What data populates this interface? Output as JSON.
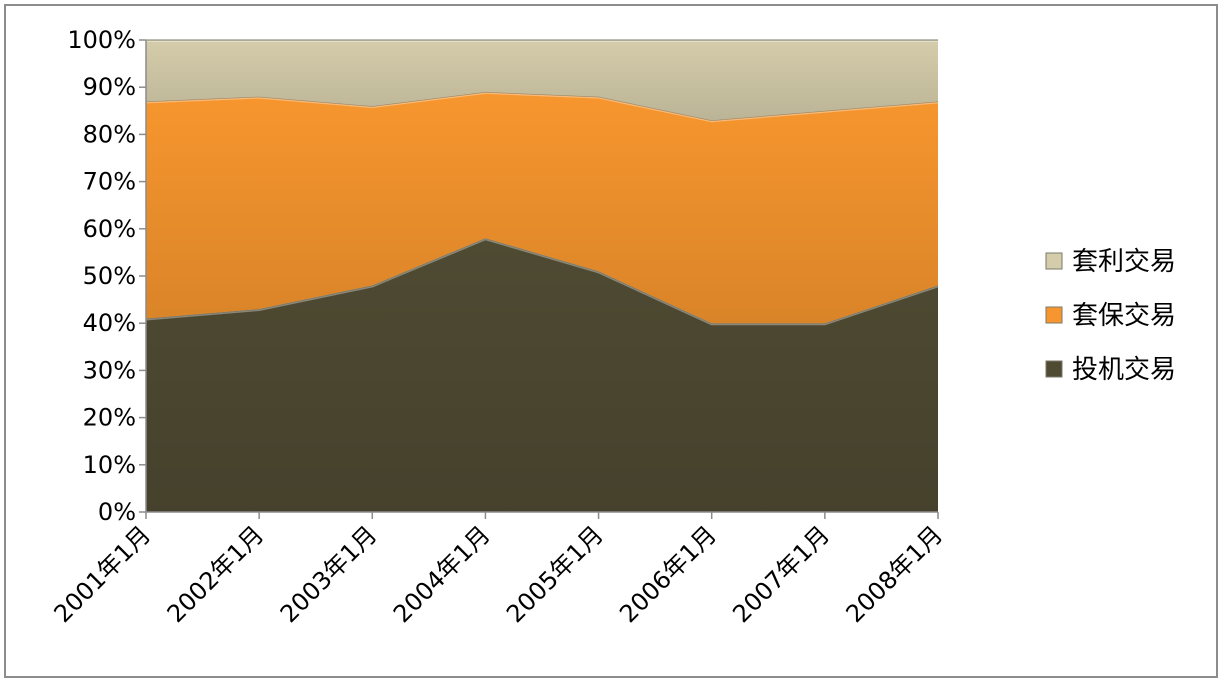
{
  "chart_data": {
    "type": "area",
    "stacked": "percent",
    "categories": [
      "2001年1月",
      "2002年1月",
      "2003年1月",
      "2004年1月",
      "2005年1月",
      "2006年1月",
      "2007年1月",
      "2008年1月"
    ],
    "series": [
      {
        "name": "投机交易",
        "values": [
          41,
          43,
          48,
          58,
          51,
          40,
          40,
          48
        ],
        "color": "#4f4a32"
      },
      {
        "name": "套保交易",
        "values": [
          46,
          45,
          38,
          31,
          37,
          43,
          45,
          39
        ],
        "color": "#f7962e"
      },
      {
        "name": "套利交易",
        "values": [
          13,
          12,
          14,
          11,
          12,
          17,
          15,
          13
        ],
        "color": "#d4ccaa"
      }
    ],
    "y_ticks": [
      "0%",
      "10%",
      "20%",
      "30%",
      "40%",
      "50%",
      "60%",
      "70%",
      "80%",
      "90%",
      "100%"
    ],
    "ylim": [
      0,
      100
    ],
    "legend_order": [
      "套利交易",
      "套保交易",
      "投机交易"
    ],
    "legend_position": "right",
    "grid": false
  }
}
